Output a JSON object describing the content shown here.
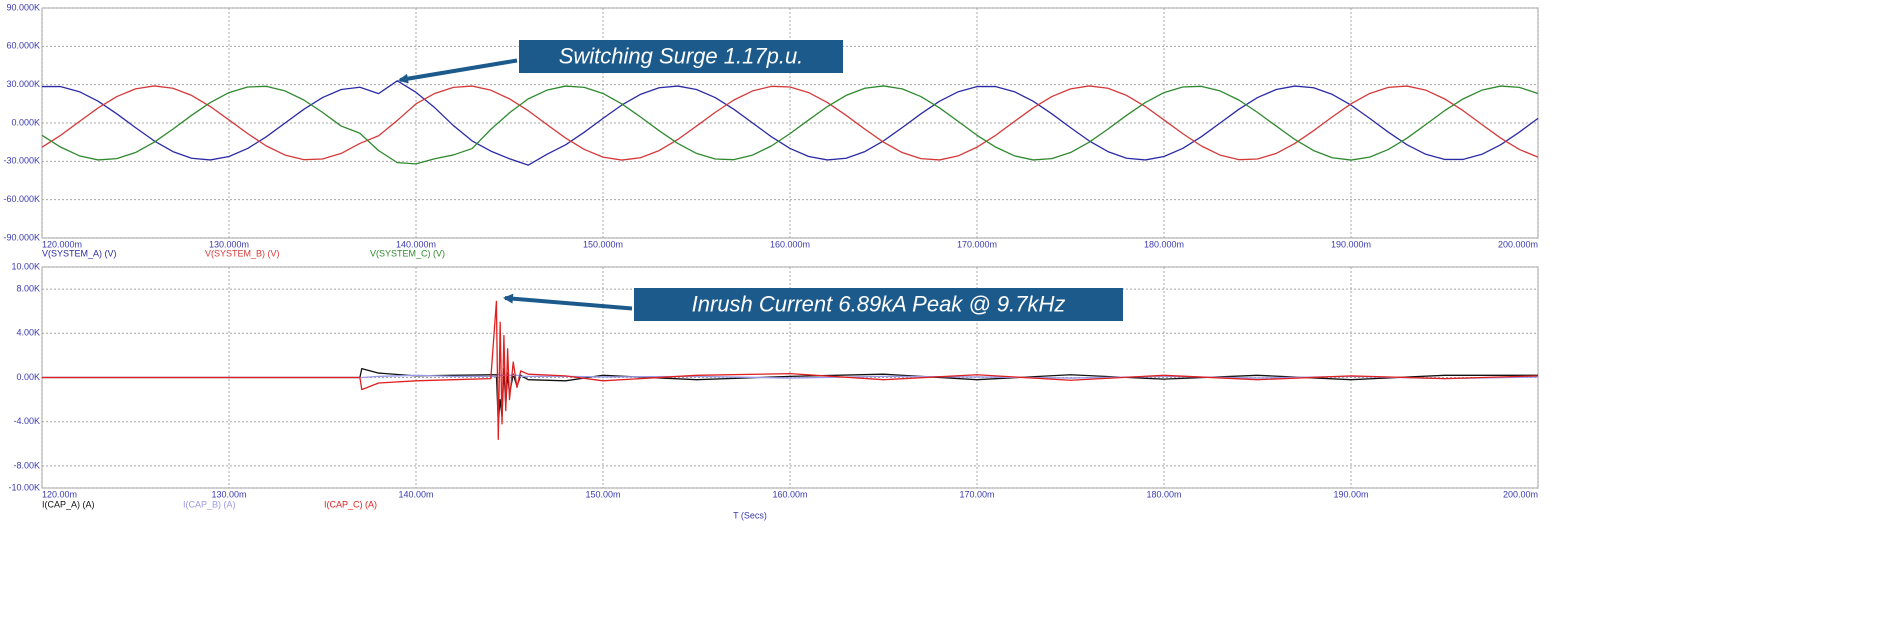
{
  "chart_data": [
    {
      "type": "line",
      "annotation": "Switching Surge 1.17p.u.",
      "x": [
        0.12,
        0.121,
        0.122,
        0.123,
        0.124,
        0.125,
        0.126,
        0.127,
        0.128,
        0.129,
        0.13,
        0.131,
        0.132,
        0.133,
        0.134,
        0.135,
        0.136,
        0.137,
        0.138,
        0.139,
        0.14,
        0.141,
        0.142,
        0.143,
        0.144,
        0.145,
        0.146,
        0.147,
        0.148,
        0.149,
        0.15,
        0.151,
        0.152,
        0.153,
        0.154,
        0.155,
        0.156,
        0.157,
        0.158,
        0.159,
        0.16,
        0.161,
        0.162,
        0.163,
        0.164,
        0.165,
        0.166,
        0.167,
        0.168,
        0.169,
        0.17,
        0.171,
        0.172,
        0.173,
        0.174,
        0.175,
        0.176,
        0.177,
        0.178,
        0.179,
        0.18,
        0.181,
        0.182,
        0.183,
        0.184,
        0.185,
        0.186,
        0.187,
        0.188,
        0.189,
        0.19,
        0.191,
        0.192,
        0.193,
        0.194,
        0.195,
        0.196,
        0.197,
        0.198,
        0.199,
        0.2
      ],
      "series": [
        {
          "name": "V(SYSTEM_A) (V)",
          "color": "#2b2ba6",
          "values": [
            28500,
            28500,
            24500,
            17100,
            7200,
            -3600,
            -14000,
            -22400,
            -27600,
            -28900,
            -26200,
            -19900,
            -10700,
            0,
            10700,
            19900,
            26200,
            28000,
            23000,
            33000,
            24000,
            12000,
            -2000,
            -14000,
            -22000,
            -28000,
            -33000,
            -24500,
            -17100,
            -7200,
            3600,
            14000,
            22400,
            27600,
            28900,
            26200,
            19900,
            10700,
            0,
            -10700,
            -19900,
            -26200,
            -28900,
            -27600,
            -22400,
            -14000,
            -3600,
            7200,
            17100,
            24500,
            28500,
            28500,
            24500,
            17100,
            7200,
            -3600,
            -14000,
            -22400,
            -27600,
            -28900,
            -26200,
            -19900,
            -10700,
            0,
            10700,
            19900,
            26200,
            28900,
            27600,
            22400,
            14000,
            3600,
            -7200,
            -17100,
            -24500,
            -28500,
            -28500,
            -24500,
            -17100,
            -7200,
            3600
          ]
        },
        {
          "name": "V(SYSTEM_B) (V)",
          "color": "#d43a3a",
          "values": [
            -18900,
            -9600,
            1200,
            11800,
            20700,
            26700,
            29000,
            27200,
            21600,
            12900,
            2400,
            -8300,
            -18000,
            -25100,
            -28700,
            -28200,
            -23800,
            -16000,
            -10000,
            2000,
            15000,
            23100,
            27900,
            28900,
            25700,
            18900,
            9600,
            -1200,
            -11800,
            -20700,
            -26700,
            -29000,
            -27200,
            -21600,
            -12900,
            -2400,
            8300,
            18000,
            25100,
            28700,
            28200,
            23800,
            16000,
            6000,
            -4800,
            -15000,
            -23100,
            -27900,
            -28900,
            -25700,
            -18900,
            -9600,
            1200,
            11800,
            20700,
            26700,
            29000,
            27200,
            21600,
            12900,
            2400,
            -8300,
            -18000,
            -25100,
            -28700,
            -28200,
            -23800,
            -16000,
            -6000,
            4800,
            15000,
            23100,
            27900,
            28900,
            25700,
            18900,
            9600,
            -1200,
            -11800,
            -20700,
            -26700
          ]
        },
        {
          "name": "V(SYSTEM_C) (V)",
          "color": "#2f8a2f",
          "values": [
            -9600,
            -18900,
            -25700,
            -28900,
            -27900,
            -23100,
            -15000,
            -4800,
            6000,
            16000,
            23800,
            28200,
            28700,
            25100,
            18000,
            8300,
            -2400,
            -8000,
            -21600,
            -31000,
            -32000,
            -28000,
            -25000,
            -20000,
            -5000,
            8000,
            18900,
            25700,
            28900,
            27900,
            23100,
            15000,
            4800,
            -6000,
            -16000,
            -23800,
            -28200,
            -28700,
            -25100,
            -18000,
            -8300,
            2400,
            12900,
            21600,
            27200,
            29000,
            26700,
            20700,
            11800,
            1200,
            -9600,
            -18900,
            -25700,
            -28900,
            -27900,
            -23100,
            -15000,
            -4800,
            6000,
            16000,
            23800,
            28200,
            28700,
            25100,
            18000,
            8300,
            -2400,
            -12900,
            -21600,
            -27200,
            -29000,
            -26700,
            -20700,
            -11800,
            -1200,
            9600,
            18900,
            25700,
            28900,
            27900,
            23100
          ]
        }
      ],
      "xlim": [
        0.12,
        0.2
      ],
      "xticks": [
        {
          "value": 0.12,
          "label": "120.000m"
        },
        {
          "value": 0.13,
          "label": "130.000m"
        },
        {
          "value": 0.14,
          "label": "140.000m"
        },
        {
          "value": 0.15,
          "label": "150.000m"
        },
        {
          "value": 0.16,
          "label": "160.000m"
        },
        {
          "value": 0.17,
          "label": "170.000m"
        },
        {
          "value": 0.18,
          "label": "180.000m"
        },
        {
          "value": 0.19,
          "label": "190.000m"
        },
        {
          "value": 0.2,
          "label": "200.000m"
        }
      ],
      "ylim": [
        -90000,
        90000
      ],
      "yticks": [
        {
          "value": 90000,
          "label": "90.000K"
        },
        {
          "value": 60000,
          "label": "60.000K"
        },
        {
          "value": 30000,
          "label": "30.000K"
        },
        {
          "value": 0,
          "label": "0.000K"
        },
        {
          "value": -30000,
          "label": "-30.000K"
        },
        {
          "value": -60000,
          "label": "-60.000K"
        },
        {
          "value": -90000,
          "label": "-90.000K"
        }
      ],
      "grid": true
    },
    {
      "type": "line",
      "annotation": "Inrush Current 6.89kA Peak @ 9.7kHz",
      "xlabel": "T (Secs)",
      "x": [
        0.12,
        0.137,
        0.1371,
        0.138,
        0.14,
        0.142,
        0.144,
        0.1443,
        0.1444,
        0.1445,
        0.1446,
        0.1447,
        0.1448,
        0.1449,
        0.145,
        0.1452,
        0.1454,
        0.1456,
        0.146,
        0.148,
        0.15,
        0.155,
        0.16,
        0.165,
        0.17,
        0.175,
        0.18,
        0.185,
        0.19,
        0.195,
        0.2
      ],
      "series": [
        {
          "name": "I(CAP_A) (A)",
          "color": "#111111",
          "values": [
            0,
            0,
            800,
            400,
            150,
            200,
            250,
            250,
            -4000,
            -2000,
            -3500,
            800,
            -2500,
            400,
            -1500,
            300,
            -800,
            200,
            -200,
            -300,
            200,
            -200,
            100,
            300,
            -200,
            250,
            -150,
            200,
            -200,
            200,
            200
          ]
        },
        {
          "name": "I(CAP_B) (A)",
          "color": "#9a9ae6",
          "values": [
            0,
            0,
            0,
            100,
            200,
            100,
            100,
            100,
            300,
            200,
            200,
            200,
            200,
            200,
            200,
            200,
            200,
            100,
            100,
            100,
            50,
            100,
            -50,
            100,
            50,
            -50,
            100,
            -50,
            100,
            -100,
            50
          ]
        },
        {
          "name": "I(CAP_C) (A)",
          "color": "#e02020",
          "values": [
            0,
            0,
            -1100,
            -500,
            -300,
            -200,
            -100,
            6890,
            -5600,
            5000,
            -4200,
            3800,
            -3000,
            2600,
            -2000,
            1400,
            -900,
            600,
            300,
            150,
            -300,
            200,
            350,
            -200,
            250,
            -250,
            200,
            -200,
            150,
            -100,
            150
          ]
        }
      ],
      "xlim": [
        0.12,
        0.2
      ],
      "xticks": [
        {
          "value": 0.12,
          "label": "120.00m"
        },
        {
          "value": 0.13,
          "label": "130.00m"
        },
        {
          "value": 0.14,
          "label": "140.00m"
        },
        {
          "value": 0.15,
          "label": "150.00m"
        },
        {
          "value": 0.16,
          "label": "160.00m"
        },
        {
          "value": 0.17,
          "label": "170.00m"
        },
        {
          "value": 0.18,
          "label": "180.00m"
        },
        {
          "value": 0.19,
          "label": "190.00m"
        },
        {
          "value": 0.2,
          "label": "200.00m"
        }
      ],
      "ylim": [
        -10000,
        10000
      ],
      "yticks": [
        {
          "value": 10000,
          "label": "10.00K"
        },
        {
          "value": 8000,
          "label": "8.00K"
        },
        {
          "value": 4000,
          "label": "4.00K"
        },
        {
          "value": 0,
          "label": "0.00K"
        },
        {
          "value": -4000,
          "label": "-4.00K"
        },
        {
          "value": -8000,
          "label": "-8.00K"
        },
        {
          "value": -10000,
          "label": "-10.00K"
        }
      ],
      "grid": true
    }
  ]
}
